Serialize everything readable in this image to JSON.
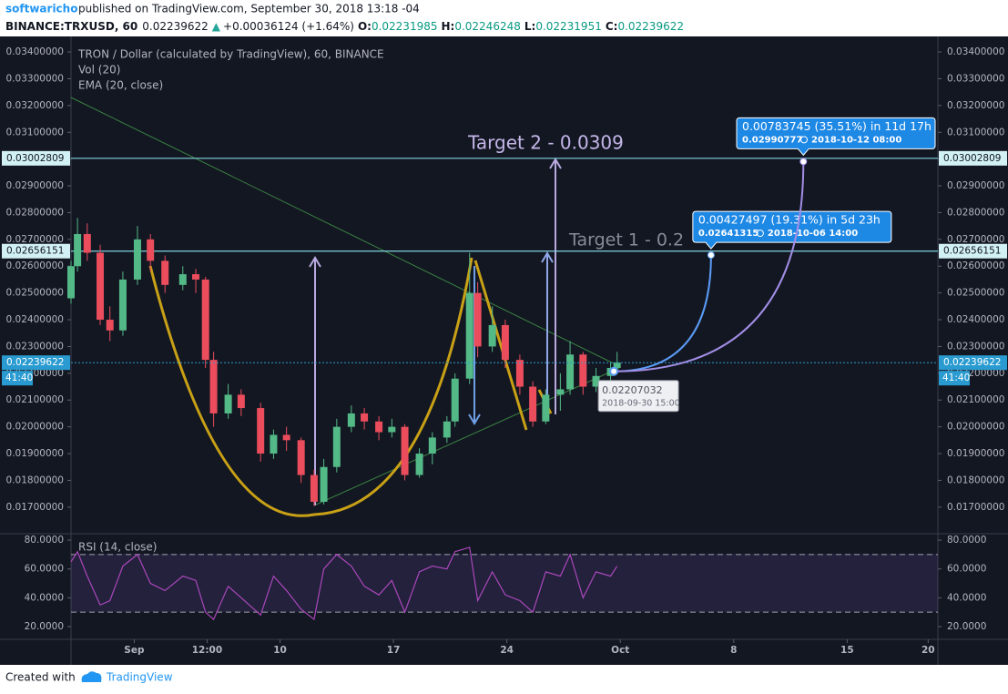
{
  "header": {
    "author": "softwaricho",
    "published": "published on TradingView.com, September 30, 2018 13:18 -04",
    "symbol": "BINANCE:TRXUSD, 60",
    "last": "0.02239622",
    "arrow": "▲",
    "change": "+0.00036124 (+1.64%)",
    "o_label": "O:",
    "o": "0.02231985",
    "h_label": "H:",
    "h": "0.02246248",
    "l_label": "L:",
    "l": "0.02231951",
    "c_label": "C:",
    "c": "0.02239622"
  },
  "footer": {
    "created": "Created with",
    "brand": "TradingView"
  },
  "chart_data": {
    "type": "candlestick",
    "title": "TRON / Dollar (calculated by TradingView), 60, BINANCE",
    "indicators": [
      "Vol (20)",
      "EMA (20, close)"
    ],
    "up_color": "#53b987",
    "down_color": "#eb4d5c",
    "x": [
      -3.9,
      -3.5,
      -2.9,
      -2.1,
      -1.5,
      -0.7,
      0.2,
      1.0,
      1.9,
      3.0,
      3.8,
      4.4,
      4.9,
      5.8,
      6.6,
      7.8,
      8.6,
      9.4,
      10.3,
      11.1,
      11.7,
      12.5,
      13.4,
      14.2,
      15.1,
      15.9,
      16.7,
      17.6,
      18.4,
      19.3,
      19.8,
      20.7,
      21.2,
      22.1,
      22.9,
      23.8,
      24.6,
      25.4,
      26.3,
      26.9,
      27.7,
      28.5,
      29.4,
      29.8
    ],
    "candles": [
      [
        0.0248,
        0.0262,
        0.0246,
        0.026
      ],
      [
        0.026,
        0.0278,
        0.0258,
        0.0272
      ],
      [
        0.0272,
        0.0276,
        0.0262,
        0.0265
      ],
      [
        0.0265,
        0.0268,
        0.0238,
        0.024
      ],
      [
        0.024,
        0.0245,
        0.0232,
        0.0236
      ],
      [
        0.0236,
        0.0258,
        0.0234,
        0.0255
      ],
      [
        0.0255,
        0.0275,
        0.0253,
        0.027
      ],
      [
        0.027,
        0.0272,
        0.0258,
        0.0262
      ],
      [
        0.0262,
        0.0264,
        0.025,
        0.0253
      ],
      [
        0.0253,
        0.026,
        0.0251,
        0.0257
      ],
      [
        0.0257,
        0.0259,
        0.025,
        0.0255
      ],
      [
        0.0255,
        0.0256,
        0.0222,
        0.0225
      ],
      [
        0.0225,
        0.0228,
        0.02,
        0.0205
      ],
      [
        0.0205,
        0.0216,
        0.0203,
        0.0212
      ],
      [
        0.0212,
        0.0214,
        0.0204,
        0.0207
      ],
      [
        0.0207,
        0.0209,
        0.0187,
        0.019
      ],
      [
        0.019,
        0.0199,
        0.0188,
        0.0197
      ],
      [
        0.0197,
        0.02,
        0.0191,
        0.0195
      ],
      [
        0.0195,
        0.0196,
        0.0179,
        0.0182
      ],
      [
        0.0182,
        0.0184,
        0.01705,
        0.0172
      ],
      [
        0.0172,
        0.0188,
        0.0171,
        0.0185
      ],
      [
        0.0185,
        0.0203,
        0.0183,
        0.02
      ],
      [
        0.02,
        0.0208,
        0.0198,
        0.0205
      ],
      [
        0.0205,
        0.0207,
        0.0199,
        0.0202
      ],
      [
        0.0202,
        0.0204,
        0.0195,
        0.0198
      ],
      [
        0.0198,
        0.0203,
        0.0196,
        0.02
      ],
      [
        0.02,
        0.0201,
        0.018,
        0.0182
      ],
      [
        0.0182,
        0.0192,
        0.0181,
        0.019
      ],
      [
        0.019,
        0.0198,
        0.0186,
        0.0196
      ],
      [
        0.0196,
        0.0204,
        0.0194,
        0.0202
      ],
      [
        0.0202,
        0.022,
        0.02,
        0.0218
      ],
      [
        0.0218,
        0.0265,
        0.0216,
        0.025
      ],
      [
        0.025,
        0.0254,
        0.0226,
        0.023
      ],
      [
        0.023,
        0.0245,
        0.0228,
        0.0238
      ],
      [
        0.0238,
        0.024,
        0.0222,
        0.0225
      ],
      [
        0.0225,
        0.0227,
        0.0212,
        0.0215
      ],
      [
        0.0215,
        0.0217,
        0.02,
        0.0202
      ],
      [
        0.0202,
        0.0214,
        0.0201,
        0.0212
      ],
      [
        0.0212,
        0.022,
        0.0206,
        0.0214
      ],
      [
        0.0214,
        0.0232,
        0.0212,
        0.0227
      ],
      [
        0.0227,
        0.0228,
        0.0212,
        0.0215
      ],
      [
        0.0215,
        0.0222,
        0.0213,
        0.0219
      ],
      [
        0.0219,
        0.0224,
        0.0217,
        0.0222
      ],
      [
        0.0222,
        0.0228,
        0.022,
        0.0224
      ]
    ],
    "xlim": [
      -3.9,
      49.6
    ],
    "xticks": [
      {
        "value": 0,
        "label": "Sep"
      },
      {
        "value": 4.5,
        "label": "12:00"
      },
      {
        "value": 9,
        "label": "10"
      },
      {
        "value": 16,
        "label": "17"
      },
      {
        "value": 23,
        "label": "24"
      },
      {
        "value": 30,
        "label": "Oct"
      },
      {
        "value": 37,
        "label": "8"
      },
      {
        "value": 44,
        "label": "15"
      },
      {
        "value": 49,
        "label": "20"
      }
    ],
    "ylim": [
      0.01611,
      0.03441
    ],
    "yticks": [
      {
        "value": 0.034,
        "label": "0.03400000"
      },
      {
        "value": 0.033,
        "label": "0.03300000"
      },
      {
        "value": 0.032,
        "label": "0.03200000"
      },
      {
        "value": 0.031,
        "label": "0.03100000"
      },
      {
        "value": 0.03,
        "label": "0.03000000"
      },
      {
        "value": 0.029,
        "label": "0.02900000"
      },
      {
        "value": 0.028,
        "label": "0.02800000"
      },
      {
        "value": 0.027,
        "label": "0.02700000"
      },
      {
        "value": 0.026,
        "label": "0.02600000"
      },
      {
        "value": 0.025,
        "label": "0.02500000"
      },
      {
        "value": 0.024,
        "label": "0.02400000"
      },
      {
        "value": 0.023,
        "label": "0.02300000"
      },
      {
        "value": 0.022,
        "label": "0.02200000"
      },
      {
        "value": 0.021,
        "label": "0.02100000"
      },
      {
        "value": 0.02,
        "label": "0.02000000"
      },
      {
        "value": 0.019,
        "label": "0.01900000"
      },
      {
        "value": 0.018,
        "label": "0.01800000"
      },
      {
        "value": 0.017,
        "label": "0.01700000"
      }
    ],
    "grid": false,
    "levels": [
      0.03002809,
      0.02656151
    ],
    "level_color": "#7fd3e0",
    "last_price": 0.02239622,
    "countdown": "41:40",
    "last_color": "#2a9bd0",
    "annotations": [
      "Target 2 - 0.0309",
      "Target 1 - 0.2"
    ],
    "tooltip": {
      "x": 29.6,
      "value": 0.02207032,
      "time": "2018-09-30 15:00"
    },
    "projections": [
      {
        "x": 35.6,
        "value": 0.02641315,
        "label": "0.00427497 (19.31%) in 5d 23h",
        "time": "2018-10-06  14:00",
        "color": "#5b9cf6"
      },
      {
        "x": 41.3,
        "value": 0.02990777,
        "label": "0.00783745 (35.51%) in 11d 17h",
        "time": "2018-10-12  08:00",
        "color": "#a28ee6"
      }
    ],
    "rsi": {
      "title": "RSI (14, close)",
      "color": "#ab47bc",
      "values": [
        65,
        72,
        55,
        35,
        38,
        62,
        70,
        50,
        45,
        55,
        52,
        30,
        25,
        48,
        40,
        28,
        55,
        45,
        32,
        25,
        60,
        70,
        62,
        48,
        42,
        52,
        30,
        58,
        62,
        60,
        72,
        75,
        38,
        58,
        42,
        38,
        30,
        58,
        55,
        70,
        40,
        58,
        55,
        62
      ],
      "ylim": [
        12.4,
        83.2
      ],
      "yticks": [
        {
          "value": 80,
          "label": "80.0000"
        },
        {
          "value": 60,
          "label": "60.0000"
        },
        {
          "value": 40,
          "label": "40.0000"
        },
        {
          "value": 20,
          "label": "20.0000"
        }
      ],
      "bands": [
        30,
        70
      ]
    }
  }
}
